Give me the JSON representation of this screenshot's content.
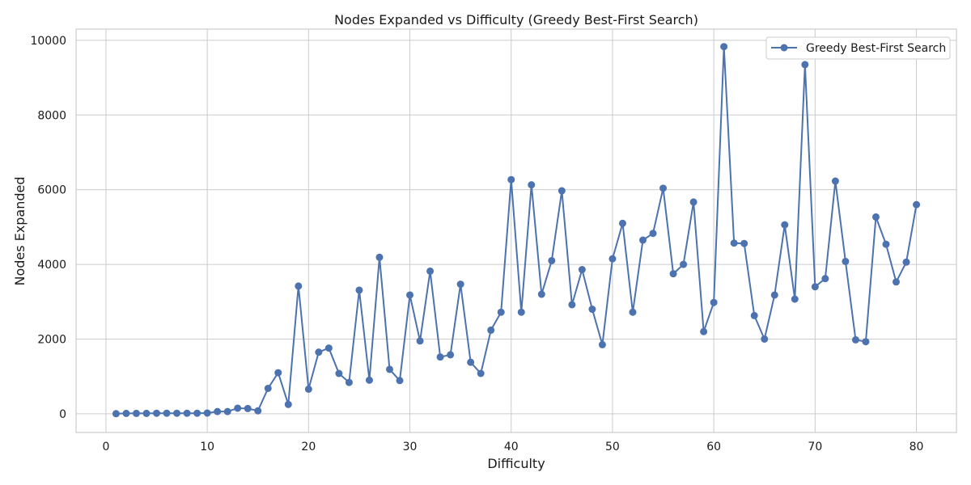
{
  "chart_data": {
    "type": "line",
    "title": "Nodes Expanded vs Difficulty (Greedy Best-First Search)",
    "xlabel": "Difficulty",
    "ylabel": "Nodes Expanded",
    "xlim": [
      -2.95,
      83.95
    ],
    "ylim": [
      -500,
      10300
    ],
    "xticks": [
      0,
      10,
      20,
      30,
      40,
      50,
      60,
      70,
      80
    ],
    "yticks": [
      0,
      2000,
      4000,
      6000,
      8000,
      10000
    ],
    "grid": true,
    "legend": {
      "placement": "top-right"
    },
    "x": [
      1,
      2,
      3,
      4,
      5,
      6,
      7,
      8,
      9,
      10,
      11,
      12,
      13,
      14,
      15,
      16,
      17,
      18,
      19,
      20,
      21,
      22,
      23,
      24,
      25,
      26,
      27,
      28,
      29,
      30,
      31,
      32,
      33,
      34,
      35,
      36,
      37,
      38,
      39,
      40,
      41,
      42,
      43,
      44,
      45,
      46,
      47,
      48,
      49,
      50,
      51,
      52,
      53,
      54,
      55,
      56,
      57,
      58,
      59,
      60,
      61,
      62,
      63,
      64,
      65,
      66,
      67,
      68,
      69,
      70,
      71,
      72,
      73,
      74,
      75,
      76,
      77,
      78,
      79,
      80
    ],
    "series": [
      {
        "name": "Greedy Best-First Search",
        "color": "#4c72b0",
        "marker": "circle",
        "values": [
          3,
          10,
          10,
          10,
          15,
          15,
          15,
          15,
          15,
          20,
          60,
          60,
          150,
          140,
          80,
          680,
          1100,
          250,
          3420,
          660,
          1650,
          1760,
          1080,
          840,
          3310,
          900,
          4190,
          1190,
          890,
          3180,
          1950,
          3820,
          1520,
          1580,
          3470,
          1380,
          1080,
          2240,
          2720,
          6270,
          2720,
          6130,
          3200,
          4100,
          5970,
          2920,
          3860,
          2800,
          1850,
          4150,
          5100,
          2720,
          4650,
          4830,
          6040,
          3750,
          4000,
          5670,
          2200,
          2980,
          9830,
          4570,
          4560,
          2630,
          2000,
          3180,
          5060,
          3070,
          9350,
          3400,
          3620,
          6230,
          4080,
          1980,
          1930,
          5270,
          4540,
          3530,
          4060,
          5600
        ]
      }
    ]
  }
}
